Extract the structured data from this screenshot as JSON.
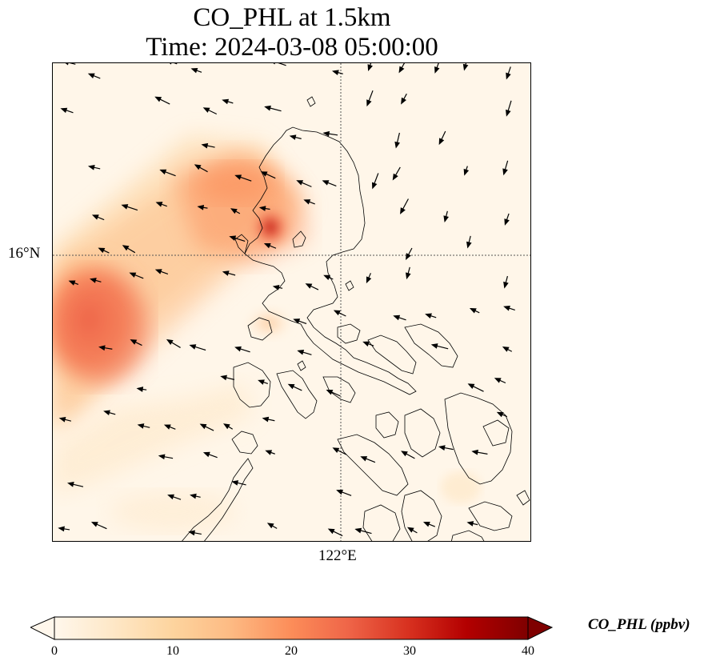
{
  "title": {
    "line1": "CO_PHL at 1.5km",
    "line2": "Time: 2024-03-08 05:00:00"
  },
  "axes": {
    "lat_label": "16°N",
    "lon_label": "122°E",
    "gridlines": "dotted"
  },
  "field": {
    "variable": "CO_PHL",
    "colormap": "OrRd",
    "vmin": 0,
    "vmax": 40,
    "extend": "both",
    "plumes": [
      {
        "name": "western-plume",
        "peak": 22
      },
      {
        "name": "luzon-hotspot",
        "peak": 30
      },
      {
        "name": "northern-band",
        "peak": 18
      }
    ]
  },
  "colorbar": {
    "label": "CO_PHL (ppbv)",
    "ticks": [
      "0",
      "10",
      "20",
      "30",
      "40"
    ],
    "colors": [
      "#fff7ec",
      "#fee8c8",
      "#fdd49e",
      "#fdbb84",
      "#fc8d59",
      "#ef6548",
      "#d7301f",
      "#b30000",
      "#7f0000"
    ]
  },
  "wind_vectors": "black quiver arrows, mostly pointing west-southwest"
}
